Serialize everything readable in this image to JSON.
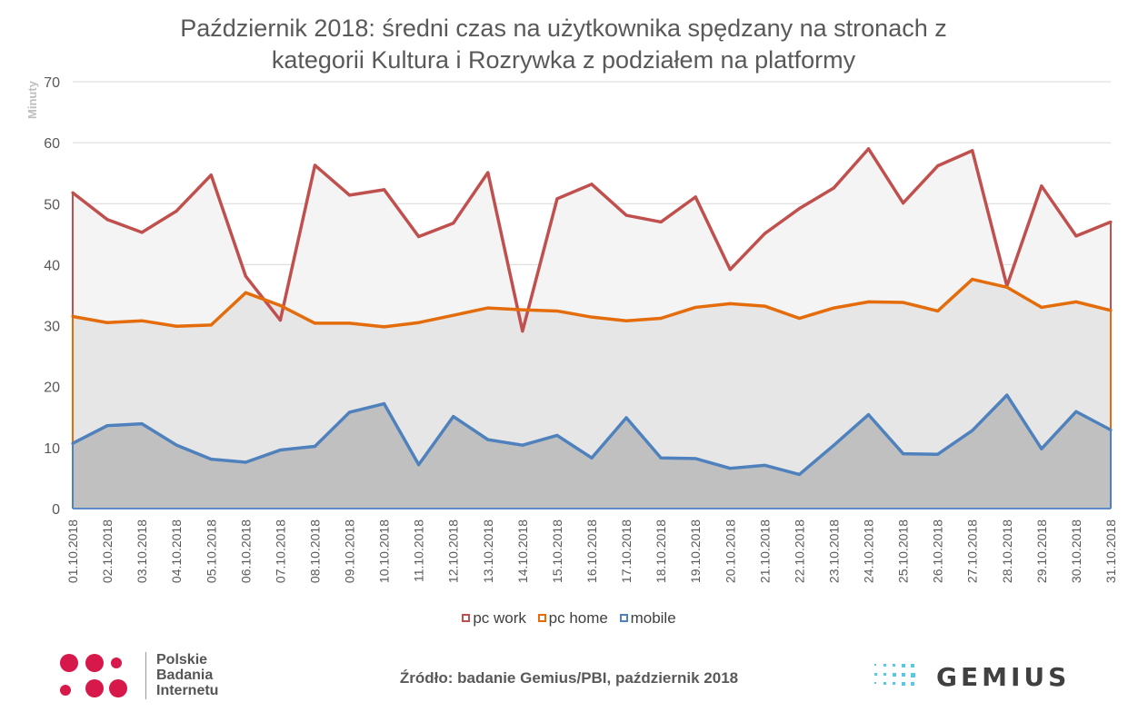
{
  "chart_data": {
    "type": "area",
    "title_line1": "Październik 2018: średni czas na użytkownika spędzany na stronach z",
    "title_line2": "kategorii Kultura i Rozrywka z podziałem na platformy",
    "ylabel": "Minuty",
    "xlabel": "",
    "ylim": [
      0,
      70
    ],
    "yticks": [
      0,
      10,
      20,
      30,
      40,
      50,
      60,
      70
    ],
    "grid": true,
    "legend_position": "bottom",
    "categories": [
      "01.10.2018",
      "02.10.2018",
      "03.10.2018",
      "04.10.2018",
      "05.10.2018",
      "06.10.2018",
      "07.10.2018",
      "08.10.2018",
      "09.10.2018",
      "10.10.2018",
      "11.10.2018",
      "12.10.2018",
      "13.10.2018",
      "14.10.2018",
      "15.10.2018",
      "16.10.2018",
      "17.10.2018",
      "18.10.2018",
      "19.10.2018",
      "20.10.2018",
      "21.10.2018",
      "22.10.2018",
      "23.10.2018",
      "24.10.2018",
      "25.10.2018",
      "26.10.2018",
      "27.10.2018",
      "28.10.2018",
      "29.10.2018",
      "30.10.2018",
      "31.10.2018"
    ],
    "series": [
      {
        "name": "pc work",
        "color": "#c0504d",
        "fill": "#f4f4f4",
        "values": [
          51.8,
          47.4,
          45.3,
          48.8,
          54.7,
          38.1,
          30.9,
          56.3,
          51.4,
          52.3,
          44.6,
          46.8,
          55.1,
          29.1,
          50.8,
          53.2,
          48.1,
          47.0,
          51.1,
          39.2,
          45.1,
          49.2,
          52.6,
          59.0,
          50.1,
          56.2,
          58.7,
          36.5,
          52.9,
          44.7,
          47.0
        ]
      },
      {
        "name": "pc home",
        "color": "#e46c0a",
        "fill": "#e6e6e6",
        "values": [
          31.5,
          30.5,
          30.8,
          29.9,
          30.1,
          35.4,
          33.3,
          30.4,
          30.4,
          29.8,
          30.5,
          31.7,
          32.9,
          32.6,
          32.4,
          31.4,
          30.8,
          31.2,
          33.0,
          33.6,
          33.2,
          31.2,
          32.9,
          33.9,
          33.8,
          32.4,
          37.6,
          36.3,
          33.0,
          33.9,
          32.5
        ]
      },
      {
        "name": "mobile",
        "color": "#4f81bd",
        "fill": "#c0c0c0",
        "values": [
          10.7,
          13.6,
          13.9,
          10.4,
          8.1,
          7.6,
          9.6,
          10.2,
          15.8,
          17.2,
          7.2,
          15.1,
          11.3,
          10.4,
          12.0,
          8.3,
          14.9,
          8.3,
          8.2,
          6.6,
          7.1,
          5.6,
          10.4,
          15.4,
          9.0,
          8.9,
          12.8,
          18.6,
          9.8,
          15.9,
          12.9
        ]
      }
    ]
  },
  "legend": {
    "pc_work": "pc work",
    "pc_home": "pc home",
    "mobile": "mobile"
  },
  "source": "Źródło: badanie Gemius/PBI, październik 2018",
  "logos": {
    "pbi": [
      "Polskie",
      "Badania",
      "Internetu"
    ],
    "gemius": "GEMIUS",
    "pbi_color": "#d6184a",
    "gemius_dot_color": "#5bc7e6"
  }
}
